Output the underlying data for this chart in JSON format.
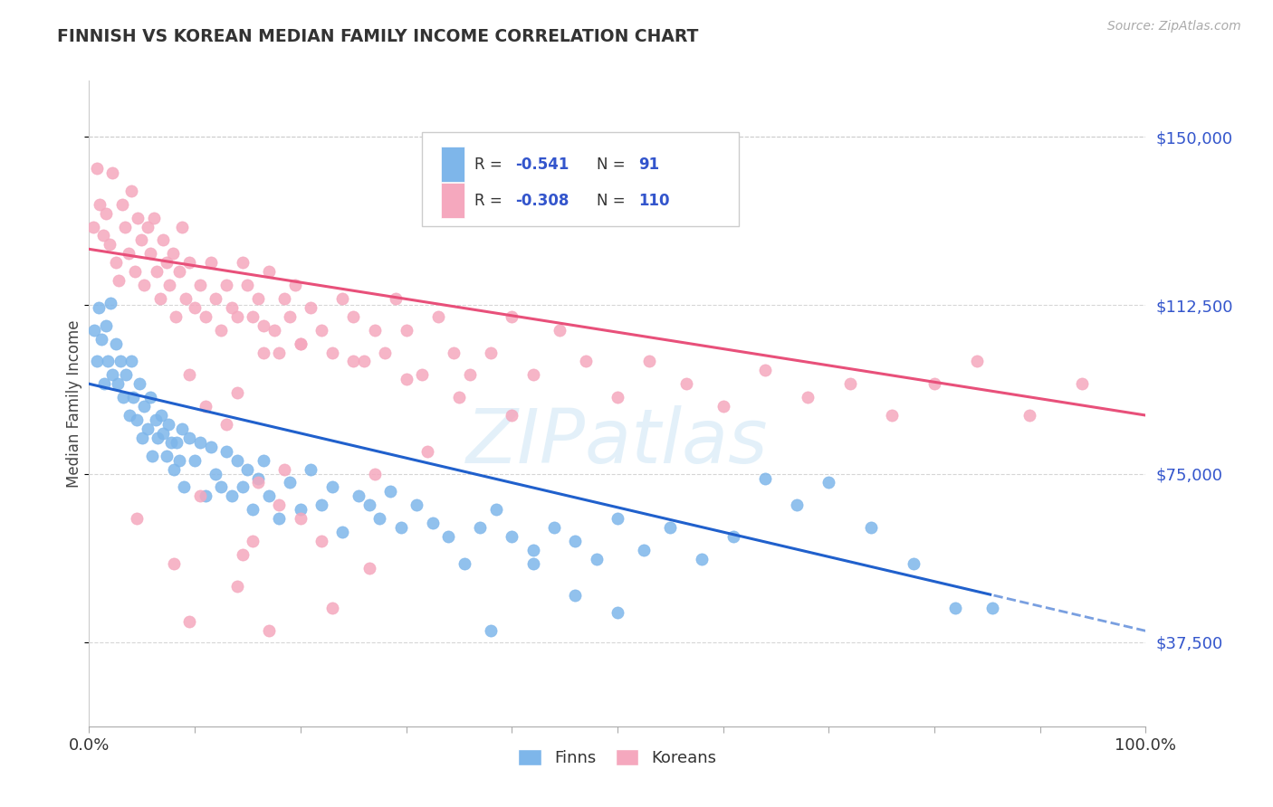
{
  "title": "FINNISH VS KOREAN MEDIAN FAMILY INCOME CORRELATION CHART",
  "source": "Source: ZipAtlas.com",
  "ylabel": "Median Family Income",
  "ytick_labels": [
    "$37,500",
    "$75,000",
    "$112,500",
    "$150,000"
  ],
  "ytick_values": [
    37500,
    75000,
    112500,
    150000
  ],
  "ymin": 18750,
  "ymax": 162500,
  "xmin": 0.0,
  "xmax": 1.0,
  "watermark": "ZIPatlas",
  "finns_R": "-0.541",
  "finns_N": "91",
  "koreans_R": "-0.308",
  "koreans_N": "110",
  "finn_color": "#7EB6EA",
  "korean_color": "#F5A8BE",
  "finn_line_color": "#2060CC",
  "korean_line_color": "#E8507A",
  "legend_text_color": "#3355CC",
  "title_color": "#333333",
  "source_color": "#aaaaaa",
  "finns_x": [
    0.005,
    0.007,
    0.009,
    0.012,
    0.014,
    0.016,
    0.018,
    0.02,
    0.022,
    0.025,
    0.027,
    0.03,
    0.032,
    0.035,
    0.038,
    0.04,
    0.042,
    0.045,
    0.048,
    0.05,
    0.052,
    0.055,
    0.058,
    0.06,
    0.063,
    0.065,
    0.068,
    0.07,
    0.073,
    0.075,
    0.078,
    0.08,
    0.083,
    0.085,
    0.088,
    0.09,
    0.095,
    0.1,
    0.105,
    0.11,
    0.115,
    0.12,
    0.125,
    0.13,
    0.135,
    0.14,
    0.145,
    0.15,
    0.155,
    0.16,
    0.165,
    0.17,
    0.18,
    0.19,
    0.2,
    0.21,
    0.22,
    0.23,
    0.24,
    0.255,
    0.265,
    0.275,
    0.285,
    0.295,
    0.31,
    0.325,
    0.34,
    0.355,
    0.37,
    0.385,
    0.4,
    0.42,
    0.44,
    0.46,
    0.48,
    0.5,
    0.525,
    0.55,
    0.58,
    0.61,
    0.64,
    0.67,
    0.7,
    0.74,
    0.78,
    0.82,
    0.855,
    0.46,
    0.5,
    0.42,
    0.38
  ],
  "finns_y": [
    107000,
    100000,
    112000,
    105000,
    95000,
    108000,
    100000,
    113000,
    97000,
    104000,
    95000,
    100000,
    92000,
    97000,
    88000,
    100000,
    92000,
    87000,
    95000,
    83000,
    90000,
    85000,
    92000,
    79000,
    87000,
    83000,
    88000,
    84000,
    79000,
    86000,
    82000,
    76000,
    82000,
    78000,
    85000,
    72000,
    83000,
    78000,
    82000,
    70000,
    81000,
    75000,
    72000,
    80000,
    70000,
    78000,
    72000,
    76000,
    67000,
    74000,
    78000,
    70000,
    65000,
    73000,
    67000,
    76000,
    68000,
    72000,
    62000,
    70000,
    68000,
    65000,
    71000,
    63000,
    68000,
    64000,
    61000,
    55000,
    63000,
    67000,
    61000,
    58000,
    63000,
    60000,
    56000,
    65000,
    58000,
    63000,
    56000,
    61000,
    74000,
    68000,
    73000,
    63000,
    55000,
    45000,
    45000,
    48000,
    44000,
    55000,
    40000
  ],
  "koreans_x": [
    0.004,
    0.007,
    0.01,
    0.013,
    0.016,
    0.019,
    0.022,
    0.025,
    0.028,
    0.031,
    0.034,
    0.037,
    0.04,
    0.043,
    0.046,
    0.049,
    0.052,
    0.055,
    0.058,
    0.061,
    0.064,
    0.067,
    0.07,
    0.073,
    0.076,
    0.079,
    0.082,
    0.085,
    0.088,
    0.091,
    0.095,
    0.1,
    0.105,
    0.11,
    0.115,
    0.12,
    0.125,
    0.13,
    0.135,
    0.14,
    0.145,
    0.15,
    0.155,
    0.16,
    0.165,
    0.17,
    0.175,
    0.18,
    0.185,
    0.19,
    0.195,
    0.2,
    0.21,
    0.22,
    0.23,
    0.24,
    0.25,
    0.26,
    0.27,
    0.28,
    0.29,
    0.3,
    0.315,
    0.33,
    0.345,
    0.36,
    0.38,
    0.4,
    0.42,
    0.445,
    0.47,
    0.5,
    0.53,
    0.565,
    0.6,
    0.64,
    0.68,
    0.72,
    0.76,
    0.8,
    0.84,
    0.89,
    0.94,
    0.165,
    0.2,
    0.25,
    0.3,
    0.35,
    0.4,
    0.14,
    0.095,
    0.11,
    0.13,
    0.16,
    0.18,
    0.2,
    0.22,
    0.145,
    0.265,
    0.185,
    0.32,
    0.27,
    0.105,
    0.045,
    0.155,
    0.08,
    0.14,
    0.23,
    0.095,
    0.17
  ],
  "koreans_y": [
    130000,
    143000,
    135000,
    128000,
    133000,
    126000,
    142000,
    122000,
    118000,
    135000,
    130000,
    124000,
    138000,
    120000,
    132000,
    127000,
    117000,
    130000,
    124000,
    132000,
    120000,
    114000,
    127000,
    122000,
    117000,
    124000,
    110000,
    120000,
    130000,
    114000,
    122000,
    112000,
    117000,
    110000,
    122000,
    114000,
    107000,
    117000,
    112000,
    110000,
    122000,
    117000,
    110000,
    114000,
    102000,
    120000,
    107000,
    102000,
    114000,
    110000,
    117000,
    104000,
    112000,
    107000,
    102000,
    114000,
    110000,
    100000,
    107000,
    102000,
    114000,
    107000,
    97000,
    110000,
    102000,
    97000,
    102000,
    110000,
    97000,
    107000,
    100000,
    92000,
    100000,
    95000,
    90000,
    98000,
    92000,
    95000,
    88000,
    95000,
    100000,
    88000,
    95000,
    108000,
    104000,
    100000,
    96000,
    92000,
    88000,
    93000,
    97000,
    90000,
    86000,
    73000,
    68000,
    65000,
    60000,
    57000,
    54000,
    76000,
    80000,
    75000,
    70000,
    65000,
    60000,
    55000,
    50000,
    45000,
    42000,
    40000
  ]
}
